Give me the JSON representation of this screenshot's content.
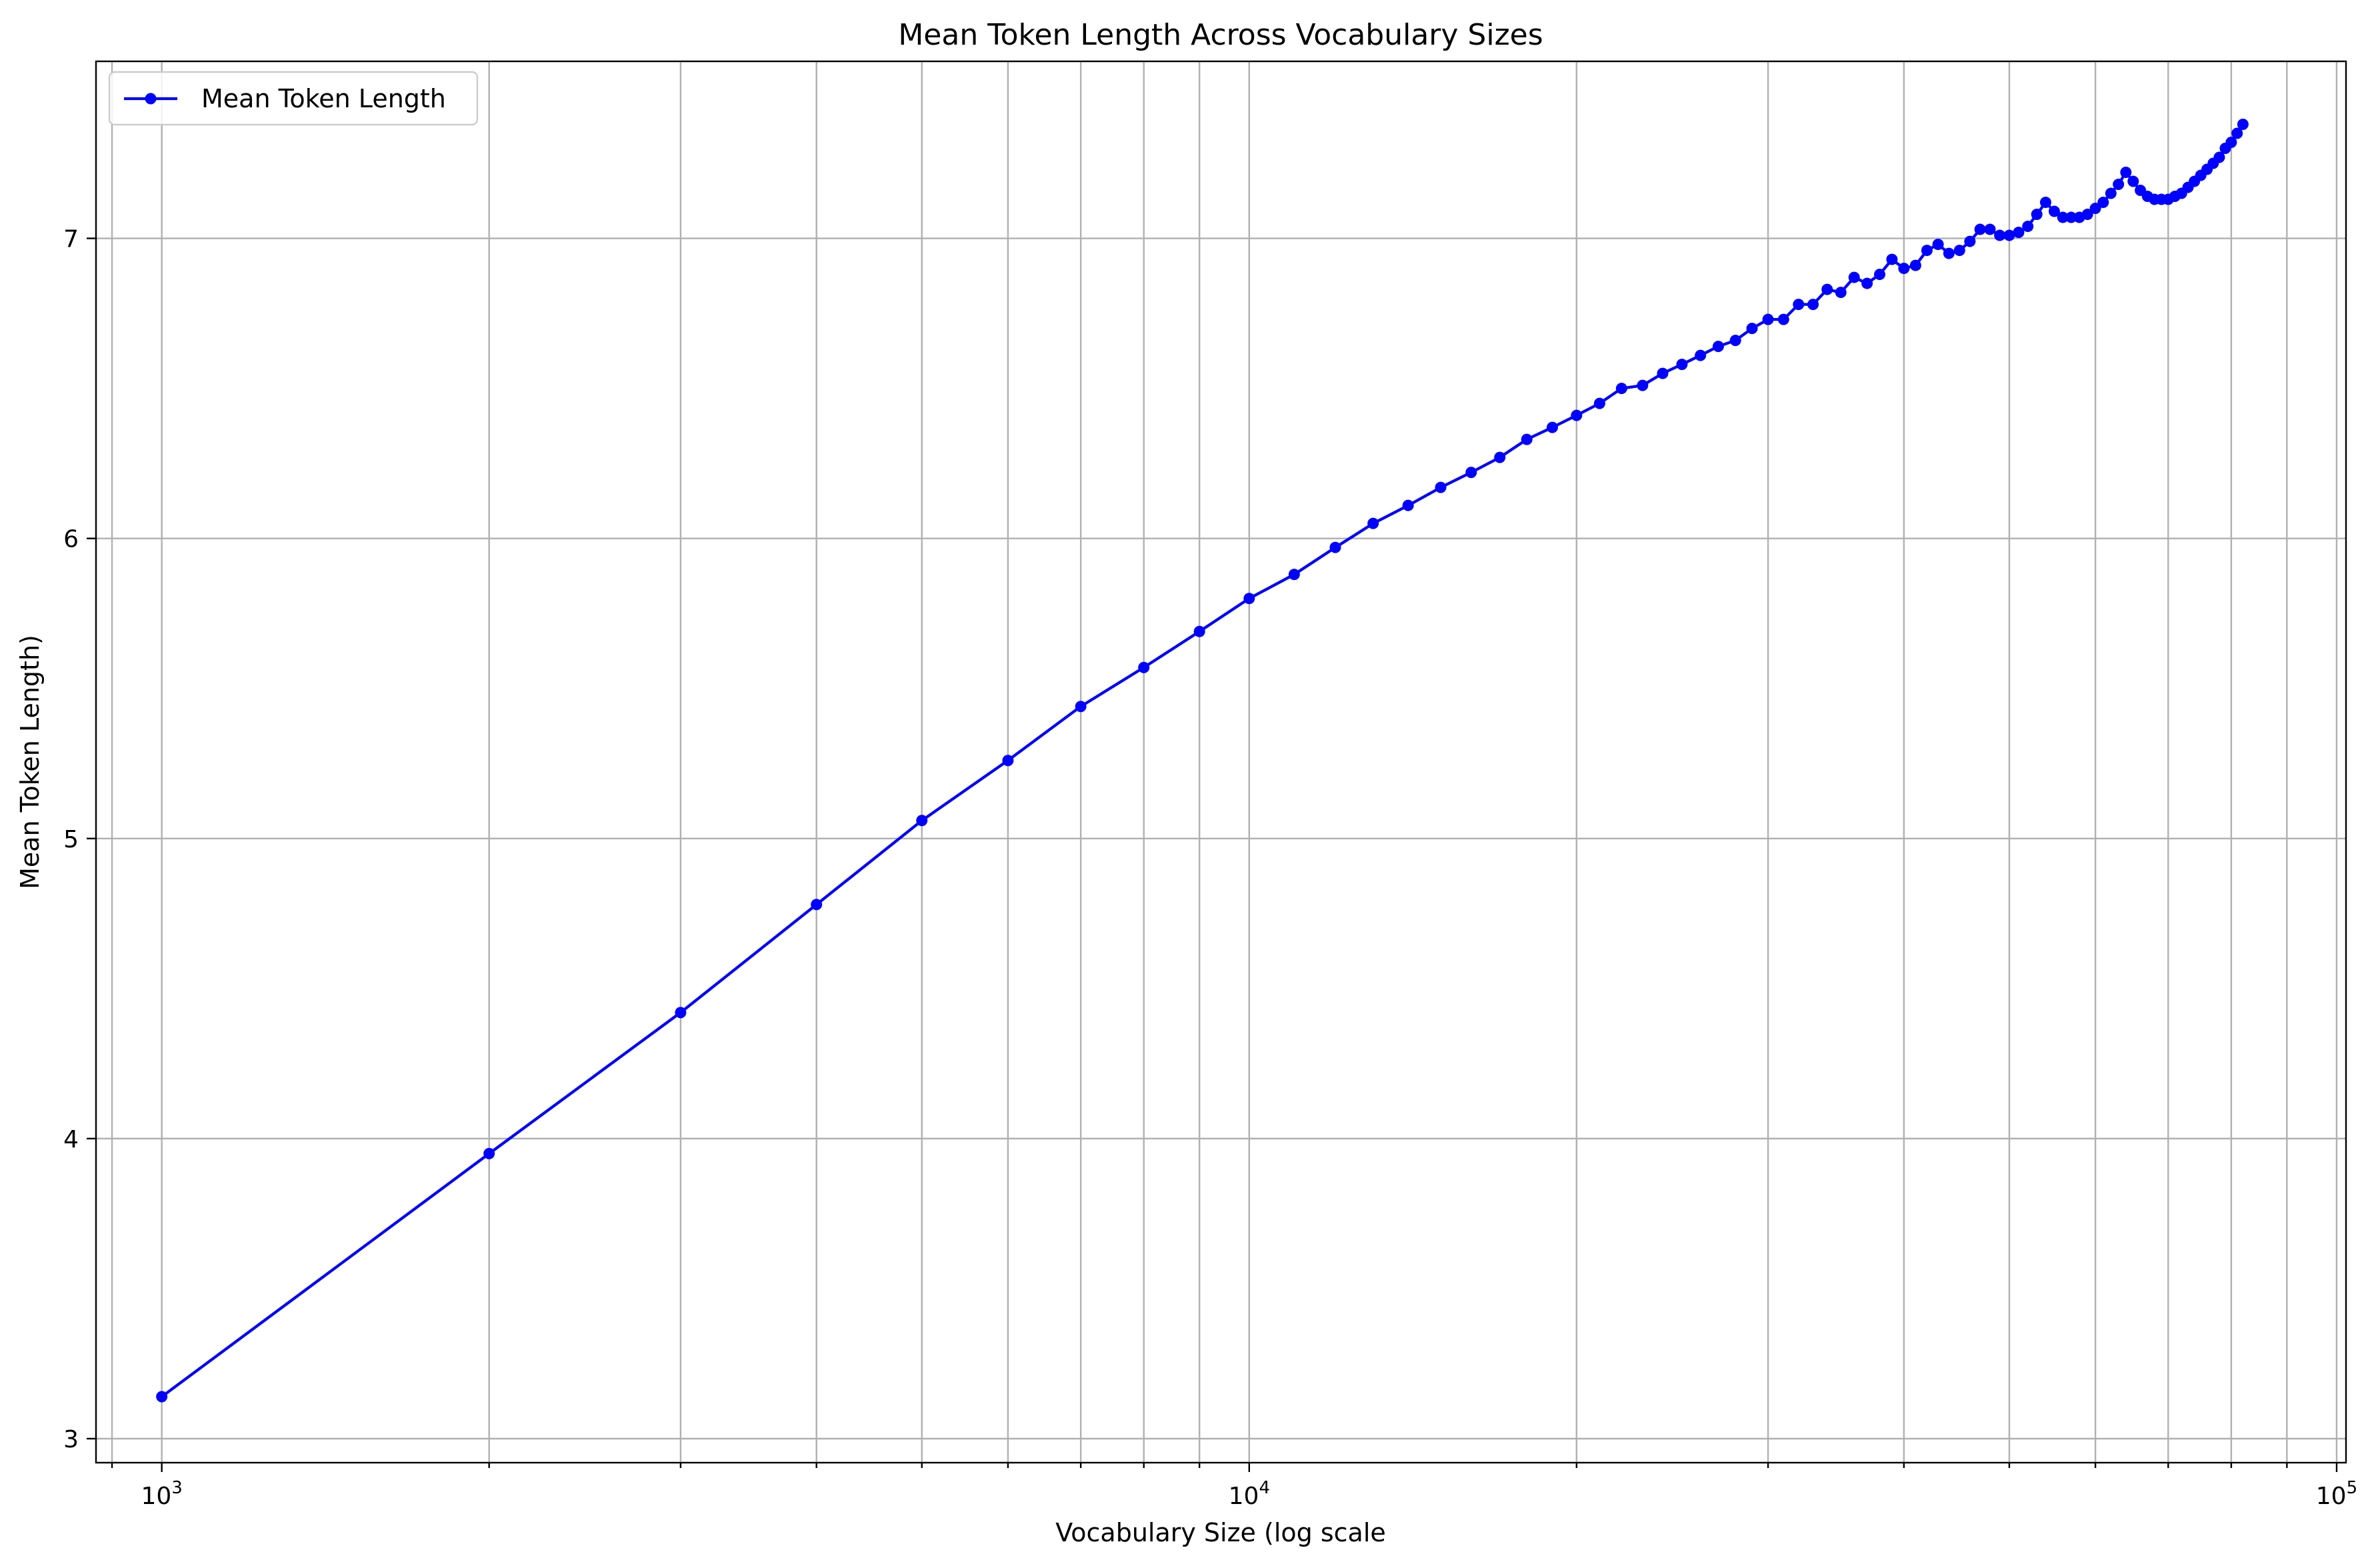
{
  "chart_data": {
    "type": "line",
    "title": "Mean Token Length Across Vocabulary Sizes",
    "xlabel": "Vocabulary Size (log scale",
    "ylabel": "Mean Token Length)",
    "xscale": "log",
    "xlim": [
      870,
      102000
    ],
    "ylim": [
      2.92,
      7.59
    ],
    "grid": true,
    "legend_position": "top-left",
    "x_ticks": [
      {
        "value": 1000,
        "base": "10",
        "exp": "3"
      },
      {
        "value": 10000,
        "base": "10",
        "exp": "4"
      },
      {
        "value": 100000,
        "base": "10",
        "exp": "5"
      }
    ],
    "y_ticks": [
      3,
      4,
      5,
      6,
      7
    ],
    "series": [
      {
        "name": "Mean Token Length",
        "color": "#0000ff",
        "marker": "circle",
        "x": [
          1000,
          2000,
          3000,
          4000,
          5000,
          6000,
          7000,
          8000,
          9000,
          10000,
          11000,
          12000,
          13000,
          14000,
          15000,
          16000,
          17000,
          18000,
          19000,
          20000,
          21000,
          22000,
          23000,
          24000,
          25000,
          26000,
          27000,
          28000,
          29000,
          30000,
          31000,
          32000,
          33000,
          34000,
          35000,
          36000,
          37000,
          38000,
          39000,
          40000,
          41000,
          42000,
          43000,
          44000,
          45000,
          46000,
          47000,
          48000,
          49000,
          50000,
          51000,
          52000,
          53000,
          54000,
          55000,
          56000,
          57000,
          58000,
          59000,
          60000,
          61000,
          62000,
          63000,
          64000,
          65000,
          66000,
          67000,
          68000,
          69000,
          70000,
          71000,
          72000,
          73000,
          74000,
          75000,
          76000,
          77000,
          78000,
          79000,
          80000,
          81000,
          82000
        ],
        "y": [
          3.14,
          3.95,
          4.42,
          4.78,
          5.06,
          5.26,
          5.44,
          5.57,
          5.69,
          5.8,
          5.88,
          5.97,
          6.05,
          6.11,
          6.17,
          6.22,
          6.27,
          6.33,
          6.37,
          6.41,
          6.45,
          6.5,
          6.51,
          6.55,
          6.58,
          6.61,
          6.64,
          6.66,
          6.7,
          6.73,
          6.73,
          6.78,
          6.78,
          6.83,
          6.82,
          6.87,
          6.85,
          6.88,
          6.93,
          6.9,
          6.91,
          6.96,
          6.98,
          6.95,
          6.96,
          6.99,
          7.03,
          7.03,
          7.01,
          7.01,
          7.02,
          7.04,
          7.08,
          7.12,
          7.09,
          7.07,
          7.07,
          7.07,
          7.08,
          7.1,
          7.12,
          7.15,
          7.18,
          7.22,
          7.19,
          7.16,
          7.14,
          7.13,
          7.13,
          7.13,
          7.14,
          7.15,
          7.17,
          7.19,
          7.21,
          7.23,
          7.25,
          7.27,
          7.3,
          7.32,
          7.35,
          7.38
        ]
      }
    ]
  }
}
